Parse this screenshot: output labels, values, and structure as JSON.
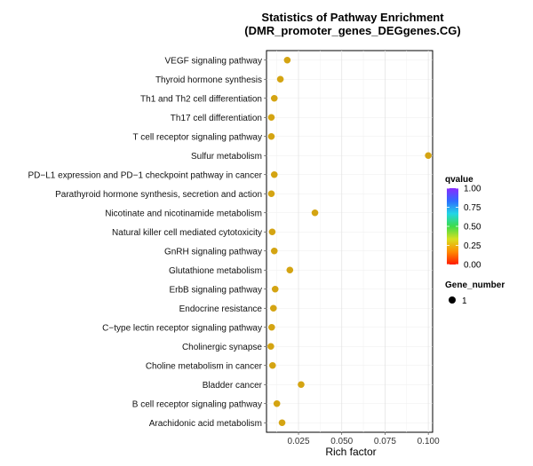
{
  "chart_data": {
    "type": "scatter",
    "title": "Statistics of Pathway Enrichment",
    "subtitle": "(DMR_promoter_genes_DEGgenes.CG)",
    "xlabel": "Rich factor",
    "ylabel": "",
    "xlim": [
      0.0065,
      0.1025
    ],
    "xticks": [
      0.025,
      0.05,
      0.075,
      0.1
    ],
    "xtick_labels": [
      "0.025",
      "0.050",
      "0.075",
      "0.100"
    ],
    "grid": true,
    "legend_position": "right",
    "point_color": "#D4A412",
    "points": [
      {
        "pathway": "VEGF signaling pathway",
        "rich_factor": 0.0185,
        "gene_number": 1
      },
      {
        "pathway": "Thyroid hormone synthesis",
        "rich_factor": 0.0145,
        "gene_number": 1
      },
      {
        "pathway": "Th1 and Th2 cell differentiation",
        "rich_factor": 0.011,
        "gene_number": 1
      },
      {
        "pathway": "Th17 cell differentiation",
        "rich_factor": 0.0093,
        "gene_number": 1
      },
      {
        "pathway": "T cell receptor signaling pathway",
        "rich_factor": 0.0093,
        "gene_number": 1
      },
      {
        "pathway": "Sulfur metabolism",
        "rich_factor": 0.1,
        "gene_number": 1
      },
      {
        "pathway": "PD−L1 expression and PD−1 checkpoint pathway in cancer",
        "rich_factor": 0.011,
        "gene_number": 1
      },
      {
        "pathway": "Parathyroid hormone synthesis, secretion and action",
        "rich_factor": 0.0093,
        "gene_number": 1
      },
      {
        "pathway": "Nicotinate and nicotinamide metabolism",
        "rich_factor": 0.0345,
        "gene_number": 1
      },
      {
        "pathway": "Natural killer cell mediated cytotoxicity",
        "rich_factor": 0.0098,
        "gene_number": 1
      },
      {
        "pathway": "GnRH signaling pathway",
        "rich_factor": 0.011,
        "gene_number": 1
      },
      {
        "pathway": "Glutathione metabolism",
        "rich_factor": 0.02,
        "gene_number": 1
      },
      {
        "pathway": "ErbB signaling pathway",
        "rich_factor": 0.0115,
        "gene_number": 1
      },
      {
        "pathway": "Endocrine resistance",
        "rich_factor": 0.0105,
        "gene_number": 1
      },
      {
        "pathway": "C−type lectin receptor signaling pathway",
        "rich_factor": 0.0095,
        "gene_number": 1
      },
      {
        "pathway": "Cholinergic synapse",
        "rich_factor": 0.009,
        "gene_number": 1
      },
      {
        "pathway": "Choline metabolism in cancer",
        "rich_factor": 0.01,
        "gene_number": 1
      },
      {
        "pathway": "Bladder cancer",
        "rich_factor": 0.0265,
        "gene_number": 1
      },
      {
        "pathway": "B cell receptor signaling pathway",
        "rich_factor": 0.0125,
        "gene_number": 1
      },
      {
        "pathway": "Arachidonic acid metabolism",
        "rich_factor": 0.0155,
        "gene_number": 1
      }
    ],
    "legend": {
      "color_title": "qvalue",
      "color_ticks": [
        "1.00",
        "0.75",
        "0.50",
        "0.25",
        "0.00"
      ],
      "color_stops": [
        "#8A2BFF",
        "#2E6CFF",
        "#22D6E6",
        "#3DDC4A",
        "#D8E020",
        "#FF8A00",
        "#FF1A00"
      ],
      "size_title": "Gene_number",
      "size_entries": [
        "1"
      ]
    }
  }
}
